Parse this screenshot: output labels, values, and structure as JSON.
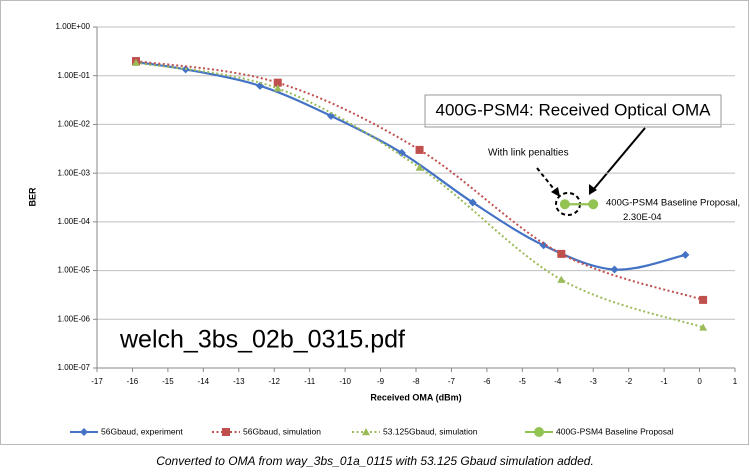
{
  "chart_data": {
    "type": "line",
    "log_y": true,
    "grid": true,
    "xlabel": "Received OMA (dBm)",
    "ylabel": "BER",
    "xlim": [
      -17,
      1
    ],
    "xticks": [
      -17,
      -16,
      -15,
      -14,
      -13,
      -12,
      -11,
      -10,
      -9,
      -8,
      -7,
      -6,
      -5,
      -4,
      -3,
      -2,
      -1,
      0,
      1
    ],
    "ylim": [
      1e-07,
      1
    ],
    "yticks": [
      {
        "value": 1,
        "label": "1.00E+00"
      },
      {
        "value": 0.1,
        "label": "1.00E-01"
      },
      {
        "value": 0.01,
        "label": "1.00E-02"
      },
      {
        "value": 0.001,
        "label": "1.00E-03"
      },
      {
        "value": 0.0001,
        "label": "1.00E-04"
      },
      {
        "value": 1e-05,
        "label": "1.00E-05"
      },
      {
        "value": 1e-06,
        "label": "1.00E-06"
      },
      {
        "value": 1e-07,
        "label": "1.00E-07"
      }
    ],
    "series": [
      {
        "name": "56Gbaud, experiment",
        "color": "#4472c4",
        "marker": "diamond",
        "dash": "solid",
        "x": [
          -15.9,
          -14.5,
          -12.4,
          -10.4,
          -8.4,
          -6.4,
          -4.4,
          -2.4,
          -0.4
        ],
        "values": [
          0.19,
          0.135,
          0.062,
          0.015,
          0.0026,
          0.00025,
          3.3e-05,
          1.05e-05,
          2.1e-05
        ]
      },
      {
        "name": "56Gbaud, simulation",
        "color": "#c0504d",
        "marker": "square",
        "dash": "dotted",
        "x": [
          -15.9,
          -11.9,
          -7.9,
          -3.9,
          0.1
        ],
        "values": [
          0.2,
          0.072,
          0.003,
          2.2e-05,
          2.5e-06
        ]
      },
      {
        "name": "53.125Gbaud, simulation",
        "color": "#9bbb59",
        "marker": "triangle",
        "dash": "dotted",
        "x": [
          -15.9,
          -11.9,
          -7.9,
          -3.9,
          0.1
        ],
        "values": [
          0.185,
          0.055,
          0.0013,
          6.5e-06,
          6.8e-07
        ]
      },
      {
        "name": "400G-PSM4 Baseline Proposal",
        "color": "#92c353",
        "marker": "circle",
        "dash": "solid",
        "x": [
          -3.8,
          -3.0
        ],
        "values": [
          0.00023,
          0.00023
        ],
        "value_labels": [
          null,
          "2.30E-04"
        ]
      }
    ],
    "annotations": [
      "400G-PSM4: Received Optical OMA",
      "With link penalties",
      "400G-PSM4 Baseline Proposal,",
      "welch_3bs_02b_0315.pdf"
    ],
    "footnote": "Converted to OMA from way_3bs_01a_0115 with 53.125 Gbaud simulation added."
  }
}
